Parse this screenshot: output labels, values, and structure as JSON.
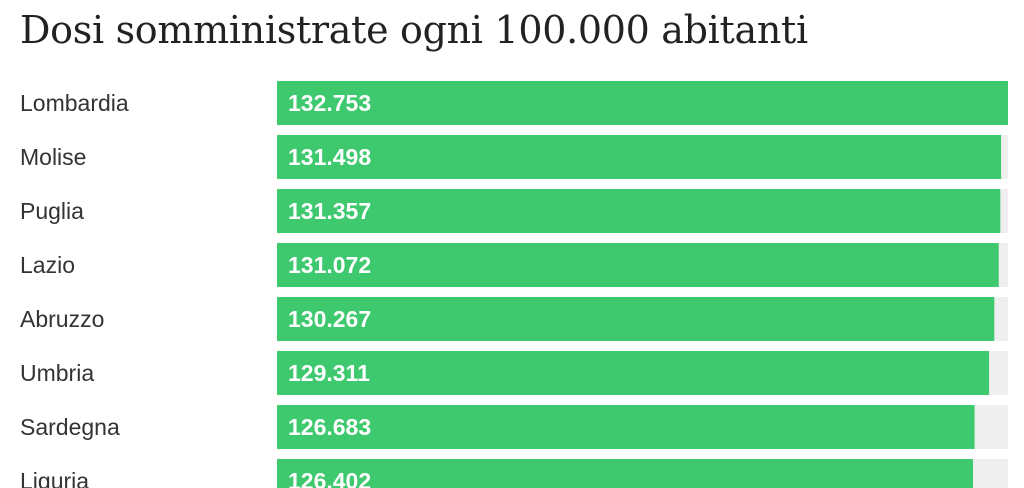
{
  "chart_data": {
    "type": "bar",
    "orientation": "horizontal",
    "title": "Dosi somministrate ogni 100.000 abitanti",
    "categories": [
      "Lombardia",
      "Molise",
      "Puglia",
      "Lazio",
      "Abruzzo",
      "Umbria",
      "Sardegna",
      "Liguria"
    ],
    "values": [
      132753,
      131498,
      131357,
      131072,
      130267,
      129311,
      126683,
      126402
    ],
    "value_labels": [
      "132.753",
      "131.498",
      "131.357",
      "131.072",
      "130.267",
      "129.311",
      "126.683",
      "126.402"
    ],
    "xlim": [
      0,
      132753
    ],
    "colors": {
      "bar": "#3ec96e",
      "track": "#efefef"
    }
  }
}
